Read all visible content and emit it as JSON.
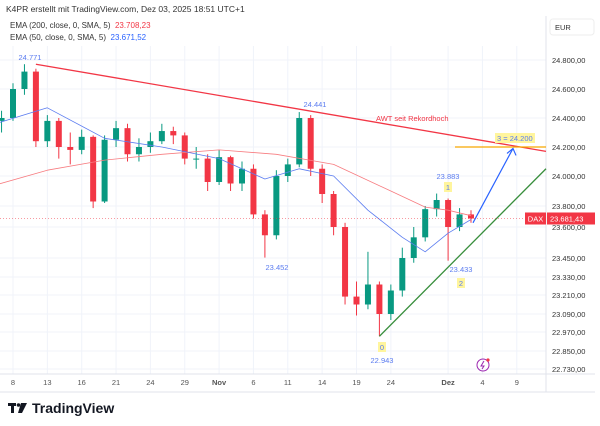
{
  "header": {
    "caption": "K4PR erstellt mit TradingView.com, Dez 03, 2025 18:51 UTC+1"
  },
  "legend": [
    {
      "label": "EMA (200, close, 0, SMA, 5)",
      "value": "23.708,23",
      "color": "#f23645"
    },
    {
      "label": "EMA (50, close, 0, SMA, 5)",
      "value": "23.671,52",
      "color": "#2962ff"
    }
  ],
  "footer": {
    "brand": "TradingView"
  },
  "chart_data": {
    "type": "candlestick",
    "currency": "EUR",
    "symbol": "DAX",
    "last_price": "23.681,43",
    "yticks": [
      {
        "v": 24800,
        "label": "24.800,00"
      },
      {
        "v": 24600,
        "label": "24.600,00"
      },
      {
        "v": 24400,
        "label": "24.400,00"
      },
      {
        "v": 24200,
        "label": "24.200,00"
      },
      {
        "v": 24000,
        "label": "24.000,00"
      },
      {
        "v": 23800,
        "label": "23.800,00"
      },
      {
        "v": 23600,
        "label": "23.600,00"
      },
      {
        "v": 23450,
        "label": "23.450,00"
      },
      {
        "v": 23330,
        "label": "23.330,00"
      },
      {
        "v": 23210,
        "label": "23.210,00"
      },
      {
        "v": 23090,
        "label": "23.090,00"
      },
      {
        "v": 22970,
        "label": "22.970,00"
      },
      {
        "v": 22850,
        "label": "22.850,00"
      },
      {
        "v": 22730,
        "label": "22.730,00"
      }
    ],
    "xticks": [
      {
        "i": 2,
        "label": "8"
      },
      {
        "i": 5,
        "label": "13"
      },
      {
        "i": 8,
        "label": "16"
      },
      {
        "i": 11,
        "label": "21"
      },
      {
        "i": 14,
        "label": "24"
      },
      {
        "i": 17,
        "label": "29"
      },
      {
        "i": 20,
        "label": "Nov",
        "bold": true
      },
      {
        "i": 23,
        "label": "6"
      },
      {
        "i": 26,
        "label": "11"
      },
      {
        "i": 29,
        "label": "14"
      },
      {
        "i": 32,
        "label": "19"
      },
      {
        "i": 35,
        "label": "24"
      },
      {
        "i": 40,
        "label": "Dez",
        "bold": true
      },
      {
        "i": 43,
        "label": "4"
      },
      {
        "i": 46,
        "label": "9"
      }
    ],
    "candles": [
      [
        "Okt 6",
        24300,
        24420,
        24250,
        24380
      ],
      [
        "Okt 7",
        24380,
        24450,
        24300,
        24400
      ],
      [
        "Okt 8",
        24400,
        24640,
        24380,
        24600
      ],
      [
        "Okt 9",
        24600,
        24771,
        24560,
        24720
      ],
      [
        "Okt 10",
        24720,
        24740,
        24200,
        24240
      ],
      [
        "Okt 13",
        24240,
        24420,
        24200,
        24380
      ],
      [
        "Okt 14",
        24380,
        24400,
        24120,
        24200
      ],
      [
        "Okt 15",
        24200,
        24300,
        24080,
        24180
      ],
      [
        "Okt 16",
        24180,
        24320,
        24150,
        24270
      ],
      [
        "Okt 17",
        24270,
        24280,
        23780,
        23830
      ],
      [
        "Okt 20",
        23830,
        24280,
        23820,
        24250
      ],
      [
        "Okt 21",
        24250,
        24380,
        24200,
        24330
      ],
      [
        "Okt 22",
        24330,
        24360,
        24100,
        24150
      ],
      [
        "Okt 23",
        24150,
        24260,
        24100,
        24200
      ],
      [
        "Okt 24",
        24200,
        24300,
        24160,
        24240
      ],
      [
        "Okt 27",
        24240,
        24360,
        24220,
        24310
      ],
      [
        "Okt 28",
        24310,
        24340,
        24220,
        24280
      ],
      [
        "Okt 29",
        24280,
        24300,
        24080,
        24120
      ],
      [
        "Okt 30",
        24120,
        24200,
        24050,
        24120
      ],
      [
        "Okt 31",
        24120,
        24150,
        23900,
        23960
      ],
      [
        "Nov 3",
        23960,
        24180,
        23940,
        24130
      ],
      [
        "Nov 4",
        24130,
        24140,
        23900,
        23950
      ],
      [
        "Nov 5",
        23950,
        24100,
        23900,
        24050
      ],
      [
        "Nov 6",
        24050,
        24080,
        23680,
        23720
      ],
      [
        "Nov 7",
        23720,
        23760,
        23452,
        23560
      ],
      [
        "Nov 10",
        23560,
        24040,
        23540,
        24000
      ],
      [
        "Nov 11",
        24000,
        24120,
        23960,
        24080
      ],
      [
        "Nov 12",
        24080,
        24441,
        24060,
        24400
      ],
      [
        "Nov 13",
        24400,
        24420,
        24000,
        24050
      ],
      [
        "Nov 14",
        24050,
        24080,
        23820,
        23880
      ],
      [
        "Nov 17",
        23880,
        23900,
        23560,
        23600
      ],
      [
        "Nov 18",
        23600,
        23640,
        23150,
        23200
      ],
      [
        "Nov 19",
        23200,
        23300,
        23080,
        23150
      ],
      [
        "Nov 20",
        23150,
        23480,
        23120,
        23280
      ],
      [
        "Nov 21",
        23280,
        23300,
        22943,
        23090
      ],
      [
        "Nov 24",
        23090,
        23280,
        23050,
        23240
      ],
      [
        "Nov 25",
        23240,
        23500,
        23200,
        23450
      ],
      [
        "Nov 26",
        23450,
        23600,
        23420,
        23550
      ],
      [
        "Nov 27",
        23550,
        23800,
        23530,
        23770
      ],
      [
        "Nov 28",
        23770,
        23883,
        23700,
        23840
      ],
      [
        "Dez 1",
        23840,
        23850,
        23433,
        23600
      ],
      [
        "Dez 2",
        23600,
        23780,
        23580,
        23720
      ],
      [
        "Dez 3",
        23720,
        23760,
        23640,
        23681
      ]
    ],
    "ema200": [
      [
        0,
        23930
      ],
      [
        5,
        24040
      ],
      [
        10,
        24110
      ],
      [
        15,
        24150
      ],
      [
        20,
        24180
      ],
      [
        25,
        24150
      ],
      [
        30,
        24080
      ],
      [
        35,
        23900
      ],
      [
        38,
        23790
      ],
      [
        40,
        23760
      ],
      [
        42,
        23708
      ]
    ],
    "ema50": [
      [
        0,
        24350
      ],
      [
        5,
        24470
      ],
      [
        10,
        24260
      ],
      [
        15,
        24200
      ],
      [
        20,
        24120
      ],
      [
        24,
        23980
      ],
      [
        27,
        24050
      ],
      [
        30,
        24000
      ],
      [
        33,
        23760
      ],
      [
        36,
        23550
      ],
      [
        38,
        23480
      ],
      [
        40,
        23570
      ],
      [
        42,
        23671
      ]
    ],
    "annotations": {
      "high_label": "24.771",
      "mid_high_label": "24.441",
      "mid_low_label": "23.452",
      "low_label": "22.943",
      "wave1_price": "23.883",
      "wave2_price": "23.433",
      "wave0": "0",
      "wave1": "1",
      "wave2": "2",
      "resistance_label": "AWT seit Rekordhoch",
      "target_label": "3 = 24.200",
      "target_value": 24200
    },
    "colors": {
      "up": "#089981",
      "down": "#f23645",
      "resistance": "#f23645",
      "support": "#388e3c",
      "target": "#f7a600",
      "projection": "#2962ff"
    }
  }
}
